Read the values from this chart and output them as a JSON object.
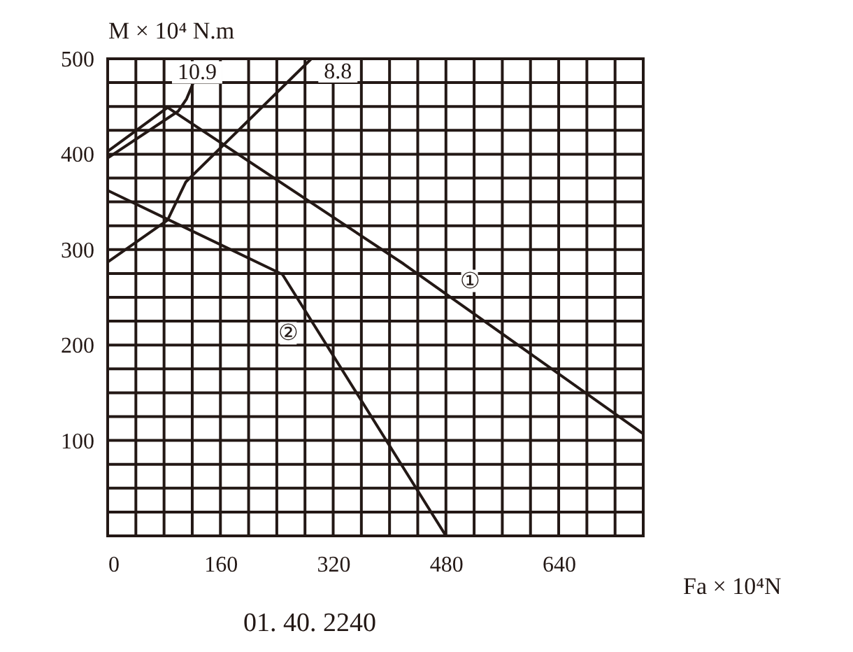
{
  "chart_data": {
    "type": "line",
    "xlabel": "Fa × 10⁴N",
    "ylabel": "M × 10⁴ N.m",
    "xlim": [
      0,
      760
    ],
    "ylim": [
      0,
      500
    ],
    "xticks": [
      0,
      {
        "value": 40,
        "label": null
      },
      {
        "value": 80,
        "label": null
      },
      {
        "value": 120,
        "label": null
      },
      160,
      {
        "value": 200,
        "label": null
      },
      {
        "value": 240,
        "label": null
      },
      {
        "value": 280,
        "label": null
      },
      320,
      {
        "value": 360,
        "label": null
      },
      {
        "value": 400,
        "label": null
      },
      {
        "value": 440,
        "label": null
      },
      480,
      {
        "value": 520,
        "label": null
      },
      {
        "value": 560,
        "label": null
      },
      {
        "value": 600,
        "label": null
      },
      640,
      {
        "value": 680,
        "label": null
      },
      {
        "value": 720,
        "label": null
      },
      {
        "value": 760,
        "label": null
      }
    ],
    "yticks": [
      {
        "value": 0,
        "label": null
      },
      {
        "value": 25,
        "label": null
      },
      {
        "value": 50,
        "label": null
      },
      {
        "value": 75,
        "label": null
      },
      100,
      {
        "value": 125,
        "label": null
      },
      {
        "value": 150,
        "label": null
      },
      {
        "value": 175,
        "label": null
      },
      200,
      {
        "value": 225,
        "label": null
      },
      {
        "value": 250,
        "label": null
      },
      {
        "value": 275,
        "label": null
      },
      300,
      {
        "value": 325,
        "label": null
      },
      {
        "value": 350,
        "label": null
      },
      {
        "value": 375,
        "label": null
      },
      400,
      {
        "value": 425,
        "label": null
      },
      {
        "value": 450,
        "label": null
      },
      {
        "value": 475,
        "label": null
      },
      500
    ],
    "grid": true,
    "series": [
      {
        "name": "①",
        "color": "#231815",
        "x": [
          0,
          85,
          420,
          760
        ],
        "values": [
          403,
          449,
          285,
          107
        ]
      },
      {
        "name": "②",
        "color": "#231815",
        "x": [
          0,
          248,
          480
        ],
        "values": [
          362,
          274,
          0
        ]
      },
      {
        "name": "10.9",
        "color": "#231815",
        "x": [
          0,
          100,
          112,
          121
        ],
        "values": [
          396,
          445,
          458,
          474
        ]
      },
      {
        "name": "8.8",
        "color": "#231815",
        "x": [
          0,
          85,
          111,
          289
        ],
        "values": [
          287,
          331,
          371,
          500
        ]
      }
    ],
    "annotations": [
      "01. 40. 2240"
    ]
  }
}
